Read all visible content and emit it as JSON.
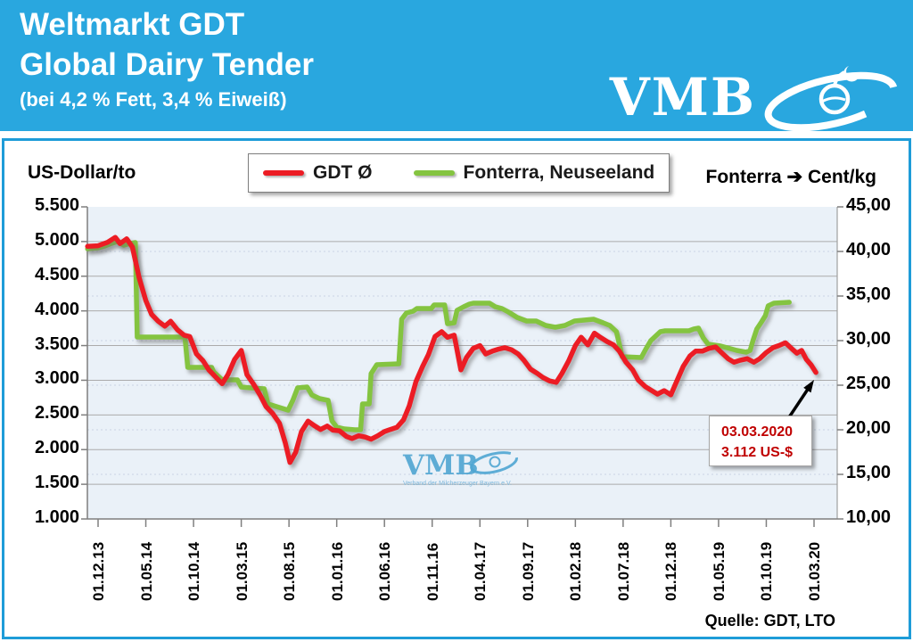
{
  "header": {
    "title_line1": "Weltmarkt GDT",
    "title_line2": "Global Dairy Tender",
    "subtitle": "(bei 4,2 % Fett, 3,4 % Eiweiß)",
    "logo_text": "VMB"
  },
  "chart": {
    "left_axis_title": "US-Dollar/to",
    "right_axis_title_prefix": "Fonterra",
    "right_axis_title_arrow": "➔",
    "right_axis_title_suffix": "Cent/kg",
    "legend": [
      {
        "label": "GDT Ø",
        "color": "#EC1C24"
      },
      {
        "label": "Fonterra, Neuseeland",
        "color": "#84C440"
      }
    ],
    "left_ticks": [
      "5.500",
      "5.000",
      "4.500",
      "4.000",
      "3.500",
      "3.000",
      "2.500",
      "2.000",
      "1.500",
      "1.000"
    ],
    "right_ticks": [
      "45,00",
      "40,00",
      "35,00",
      "30,00",
      "25,00",
      "20,00",
      "15,00",
      "10,00"
    ],
    "x_ticks": [
      "01.12.13",
      "01.05.14",
      "01.10.14",
      "01.03.15",
      "01.08.15",
      "01.01.16",
      "01.06.16",
      "01.11.16",
      "01.04.17",
      "01.09.17",
      "01.02.18",
      "01.07.18",
      "01.12.18",
      "01.05.19",
      "01.10.19",
      "01.03.20"
    ],
    "annotation": {
      "line1": "03.03.2020",
      "line2": "3.112 US-$"
    },
    "watermark": {
      "text": "VMB",
      "subtext": "Verband der Milcherzeuger Bayern e.V."
    },
    "source": "Quelle: GDT, LTO"
  },
  "chart_data": {
    "type": "line",
    "title": "Weltmarkt GDT / Global Dairy Tender (bei 4,2 % Fett, 3,4 % Eiweiß)",
    "x_unit": "months since 2013-12-01 (tick labels every 5 months)",
    "x_axis": {
      "labels": [
        "01.12.13",
        "01.05.14",
        "01.10.14",
        "01.03.15",
        "01.08.15",
        "01.01.16",
        "01.06.16",
        "01.11.16",
        "01.04.17",
        "01.09.17",
        "01.02.18",
        "01.07.18",
        "01.12.18",
        "01.05.19",
        "01.10.19",
        "01.03.20"
      ],
      "label_month_positions": [
        0,
        5,
        10,
        15,
        20,
        25,
        30,
        35,
        40,
        45,
        50,
        55,
        60,
        65,
        70,
        75
      ]
    },
    "left_axis": {
      "label": "US-Dollar/to",
      "min": 1000,
      "max": 5500,
      "step": 500
    },
    "right_axis": {
      "label": "Cent/kg",
      "min": 10,
      "max": 45,
      "step": 5
    },
    "grid": true,
    "legend_position": "top-center",
    "annotation": {
      "text": "03.03.2020 — 3.112 US-$",
      "month": 75.2,
      "value": 3112,
      "series": "GDT Ø"
    },
    "series": [
      {
        "name": "GDT Ø",
        "axis": "left",
        "unit": "US-Dollar/to",
        "color": "#EC1C24",
        "points": [
          [
            -1.1,
            4930
          ],
          [
            0,
            4940
          ],
          [
            1,
            4990
          ],
          [
            1.8,
            5060
          ],
          [
            2.3,
            4970
          ],
          [
            3,
            5040
          ],
          [
            3.6,
            4920
          ],
          [
            4.3,
            4480
          ],
          [
            5,
            4150
          ],
          [
            5.6,
            3950
          ],
          [
            6.3,
            3850
          ],
          [
            7,
            3780
          ],
          [
            7.6,
            3850
          ],
          [
            8.3,
            3730
          ],
          [
            9,
            3650
          ],
          [
            9.6,
            3630
          ],
          [
            10.3,
            3380
          ],
          [
            11,
            3280
          ],
          [
            11.6,
            3150
          ],
          [
            12.3,
            3050
          ],
          [
            13,
            2950
          ],
          [
            13.6,
            3080
          ],
          [
            14.3,
            3300
          ],
          [
            15,
            3430
          ],
          [
            15.6,
            3080
          ],
          [
            16.3,
            2940
          ],
          [
            17,
            2780
          ],
          [
            17.6,
            2620
          ],
          [
            18.3,
            2520
          ],
          [
            19,
            2380
          ],
          [
            19.6,
            2100
          ],
          [
            20.1,
            1815
          ],
          [
            20.7,
            1960
          ],
          [
            21.3,
            2260
          ],
          [
            22,
            2410
          ],
          [
            22.6,
            2350
          ],
          [
            23.3,
            2290
          ],
          [
            24,
            2340
          ],
          [
            24.6,
            2280
          ],
          [
            25.3,
            2270
          ],
          [
            26,
            2190
          ],
          [
            26.6,
            2160
          ],
          [
            27.3,
            2200
          ],
          [
            28,
            2180
          ],
          [
            28.6,
            2150
          ],
          [
            29.3,
            2200
          ],
          [
            30,
            2260
          ],
          [
            30.6,
            2290
          ],
          [
            31.3,
            2320
          ],
          [
            32,
            2430
          ],
          [
            32.6,
            2630
          ],
          [
            33.3,
            2980
          ],
          [
            34,
            3200
          ],
          [
            34.6,
            3370
          ],
          [
            35.3,
            3630
          ],
          [
            36,
            3700
          ],
          [
            36.6,
            3620
          ],
          [
            37.3,
            3650
          ],
          [
            38,
            3150
          ],
          [
            38.6,
            3330
          ],
          [
            39.3,
            3460
          ],
          [
            40,
            3500
          ],
          [
            40.6,
            3380
          ],
          [
            41.3,
            3420
          ],
          [
            42,
            3450
          ],
          [
            42.6,
            3470
          ],
          [
            43.3,
            3440
          ],
          [
            44,
            3380
          ],
          [
            44.6,
            3290
          ],
          [
            45.3,
            3160
          ],
          [
            46,
            3100
          ],
          [
            46.6,
            3040
          ],
          [
            47.3,
            2990
          ],
          [
            48,
            2970
          ],
          [
            48.6,
            3100
          ],
          [
            49.3,
            3280
          ],
          [
            50,
            3500
          ],
          [
            50.6,
            3620
          ],
          [
            51.3,
            3510
          ],
          [
            52,
            3680
          ],
          [
            52.6,
            3620
          ],
          [
            53.3,
            3560
          ],
          [
            54,
            3510
          ],
          [
            54.6,
            3420
          ],
          [
            55.3,
            3260
          ],
          [
            56,
            3150
          ],
          [
            56.6,
            3000
          ],
          [
            57.3,
            2910
          ],
          [
            58,
            2850
          ],
          [
            58.6,
            2800
          ],
          [
            59.3,
            2850
          ],
          [
            60,
            2790
          ],
          [
            60.6,
            2980
          ],
          [
            61.3,
            3200
          ],
          [
            62,
            3350
          ],
          [
            62.6,
            3420
          ],
          [
            63.3,
            3420
          ],
          [
            64,
            3460
          ],
          [
            64.7,
            3480
          ],
          [
            65.3,
            3400
          ],
          [
            66,
            3310
          ],
          [
            66.6,
            3260
          ],
          [
            67.3,
            3290
          ],
          [
            68,
            3310
          ],
          [
            68.7,
            3260
          ],
          [
            69.3,
            3310
          ],
          [
            70,
            3400
          ],
          [
            70.7,
            3470
          ],
          [
            71.3,
            3500
          ],
          [
            72,
            3540
          ],
          [
            72.7,
            3450
          ],
          [
            73.2,
            3390
          ],
          [
            73.7,
            3430
          ],
          [
            74.2,
            3300
          ],
          [
            74.7,
            3220
          ],
          [
            75.2,
            3112
          ]
        ]
      },
      {
        "name": "Fonterra, Neuseeland",
        "axis": "right",
        "unit": "Cent/kg",
        "color": "#84C440",
        "points": [
          [
            -1.1,
            40.3
          ],
          [
            0,
            40.4
          ],
          [
            0.7,
            40.6
          ],
          [
            1.4,
            40.9
          ],
          [
            2,
            41.1
          ],
          [
            2.7,
            40.7
          ],
          [
            3.4,
            40.9
          ],
          [
            3.9,
            41.0
          ],
          [
            4.1,
            30.4
          ],
          [
            9.1,
            30.4
          ],
          [
            9.4,
            27.0
          ],
          [
            11.9,
            27.0
          ],
          [
            12.1,
            26.5
          ],
          [
            12.9,
            25.7
          ],
          [
            13.1,
            25.6
          ],
          [
            14.6,
            25.6
          ],
          [
            15,
            24.8
          ],
          [
            16,
            24.7
          ],
          [
            17.4,
            24.6
          ],
          [
            17.8,
            22.9
          ],
          [
            19,
            22.5
          ],
          [
            19.9,
            22.2
          ],
          [
            20.4,
            23.3
          ],
          [
            20.9,
            24.7
          ],
          [
            21.9,
            24.8
          ],
          [
            22.4,
            23.9
          ],
          [
            23.2,
            23.5
          ],
          [
            24.1,
            23.3
          ],
          [
            24.5,
            21.0
          ],
          [
            25,
            20.3
          ],
          [
            25.8,
            20.1
          ],
          [
            26.9,
            20.0
          ],
          [
            27.5,
            20.0
          ],
          [
            27.7,
            22.9
          ],
          [
            28.4,
            22.9
          ],
          [
            28.6,
            26.3
          ],
          [
            29.2,
            27.3
          ],
          [
            31.5,
            27.4
          ],
          [
            31.8,
            32.4
          ],
          [
            32.3,
            33.1
          ],
          [
            33,
            33.3
          ],
          [
            33.4,
            33.6
          ],
          [
            34.9,
            33.6
          ],
          [
            35.2,
            34.0
          ],
          [
            36.3,
            34.0
          ],
          [
            36.6,
            31.9
          ],
          [
            37.3,
            32.0
          ],
          [
            37.6,
            33.4
          ],
          [
            38.3,
            33.8
          ],
          [
            38.9,
            34.1
          ],
          [
            39.3,
            34.2
          ],
          [
            41,
            34.2
          ],
          [
            41.6,
            33.8
          ],
          [
            42.3,
            33.6
          ],
          [
            43,
            33.2
          ],
          [
            43.9,
            32.6
          ],
          [
            44.9,
            32.2
          ],
          [
            45.9,
            32.2
          ],
          [
            46.9,
            31.7
          ],
          [
            47.9,
            31.5
          ],
          [
            48.9,
            31.7
          ],
          [
            49.9,
            32.2
          ],
          [
            50.9,
            32.3
          ],
          [
            51.9,
            32.4
          ],
          [
            52.9,
            32.0
          ],
          [
            53.6,
            31.7
          ],
          [
            54.3,
            31.0
          ],
          [
            54.9,
            28.2
          ],
          [
            56.9,
            28.1
          ],
          [
            57.4,
            29.1
          ],
          [
            57.9,
            30.0
          ],
          [
            58.9,
            31.0
          ],
          [
            59.4,
            31.1
          ],
          [
            61.9,
            31.1
          ],
          [
            62.4,
            31.3
          ],
          [
            62.9,
            31.4
          ],
          [
            63.4,
            30.3
          ],
          [
            63.9,
            29.6
          ],
          [
            65.2,
            29.4
          ],
          [
            65.9,
            29.2
          ],
          [
            66.9,
            28.9
          ],
          [
            67.9,
            28.7
          ],
          [
            68.3,
            28.9
          ],
          [
            68.6,
            30.0
          ],
          [
            69,
            31.3
          ],
          [
            69.5,
            32.1
          ],
          [
            69.9,
            32.8
          ],
          [
            70.2,
            33.9
          ],
          [
            70.8,
            34.2
          ],
          [
            72.4,
            34.3
          ]
        ]
      }
    ],
    "colors": {
      "header_blue": "#29A7DF",
      "panel_border_blue": "#1E9CD8",
      "plot_background": "#EAF1F8",
      "gridline": "#ABABAB",
      "gdt_red": "#EC1C24",
      "fonterra_green": "#84C440",
      "annotation_red": "#C00000"
    }
  }
}
